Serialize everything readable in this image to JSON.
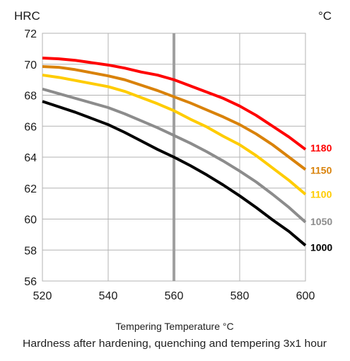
{
  "chart_data": {
    "type": "line",
    "y_unit_label": "HRC",
    "x_unit_label": "°C",
    "xlabel": "Tempering Temperature °C",
    "caption": "Hardness after hardening, quenching and tempering  3x1 hour",
    "xlim": [
      520,
      600
    ],
    "ylim": [
      56,
      72
    ],
    "x_ticks": [
      520,
      540,
      560,
      580,
      600
    ],
    "y_ticks": [
      56,
      58,
      60,
      62,
      64,
      66,
      68,
      70,
      72
    ],
    "grid": true,
    "reference_line_x": 560,
    "x": [
      520,
      525,
      530,
      535,
      540,
      545,
      550,
      555,
      560,
      565,
      570,
      575,
      580,
      585,
      590,
      595,
      600
    ],
    "series": [
      {
        "name": "1180",
        "color": "#ff0000",
        "values": [
          70.4,
          70.35,
          70.25,
          70.1,
          69.95,
          69.75,
          69.5,
          69.3,
          69.0,
          68.6,
          68.2,
          67.8,
          67.3,
          66.7,
          66.0,
          65.3,
          64.5
        ]
      },
      {
        "name": "1150",
        "color": "#d9820a",
        "values": [
          69.85,
          69.8,
          69.65,
          69.45,
          69.25,
          69.0,
          68.65,
          68.3,
          67.9,
          67.5,
          67.05,
          66.6,
          66.1,
          65.5,
          64.8,
          64.0,
          63.2
        ]
      },
      {
        "name": "1100",
        "color": "#ffcc00",
        "values": [
          69.3,
          69.15,
          68.95,
          68.75,
          68.55,
          68.25,
          67.85,
          67.45,
          67.0,
          66.45,
          65.95,
          65.35,
          64.8,
          64.1,
          63.3,
          62.5,
          61.6
        ]
      },
      {
        "name": "1050",
        "color": "#8c8c8c",
        "values": [
          68.4,
          68.1,
          67.8,
          67.5,
          67.2,
          66.8,
          66.35,
          65.9,
          65.4,
          64.9,
          64.35,
          63.75,
          63.1,
          62.4,
          61.6,
          60.75,
          59.8
        ]
      },
      {
        "name": "1000",
        "color": "#000000",
        "values": [
          67.6,
          67.25,
          66.9,
          66.5,
          66.1,
          65.6,
          65.05,
          64.5,
          64.0,
          63.45,
          62.85,
          62.2,
          61.5,
          60.75,
          59.95,
          59.2,
          58.3
        ]
      }
    ]
  },
  "colors": {
    "grid": "#b3b3b3",
    "reference_line": "#a0a0a0",
    "axis_text": "#1a1a1a"
  }
}
